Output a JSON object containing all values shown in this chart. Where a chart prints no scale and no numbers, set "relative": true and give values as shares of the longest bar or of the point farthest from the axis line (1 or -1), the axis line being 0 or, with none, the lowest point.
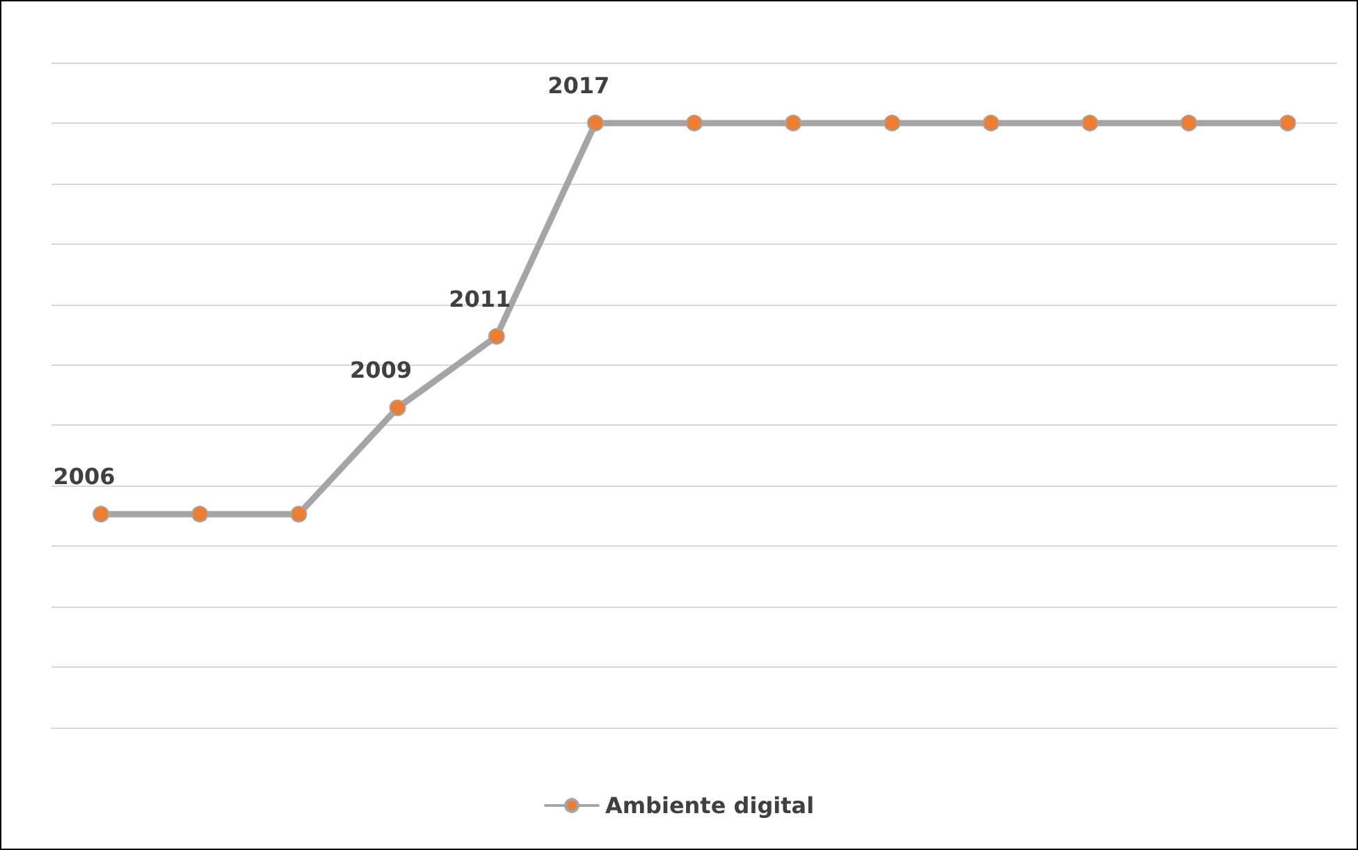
{
  "chart_data": {
    "type": "line",
    "relative": true,
    "categories": [
      "2006",
      null,
      null,
      "2009",
      "2011",
      "2017",
      null,
      null,
      null,
      null,
      null,
      null,
      null
    ],
    "series": [
      {
        "name": "Ambiente digital",
        "color": "#a5a5a5",
        "values": [
          0.353,
          0.353,
          0.353,
          0.529,
          0.647,
          1,
          1,
          1,
          1,
          1,
          1,
          1,
          1
        ]
      }
    ],
    "grid": "y",
    "legend": "bottom",
    "marker": "circle",
    "line_style": "solid"
  }
}
